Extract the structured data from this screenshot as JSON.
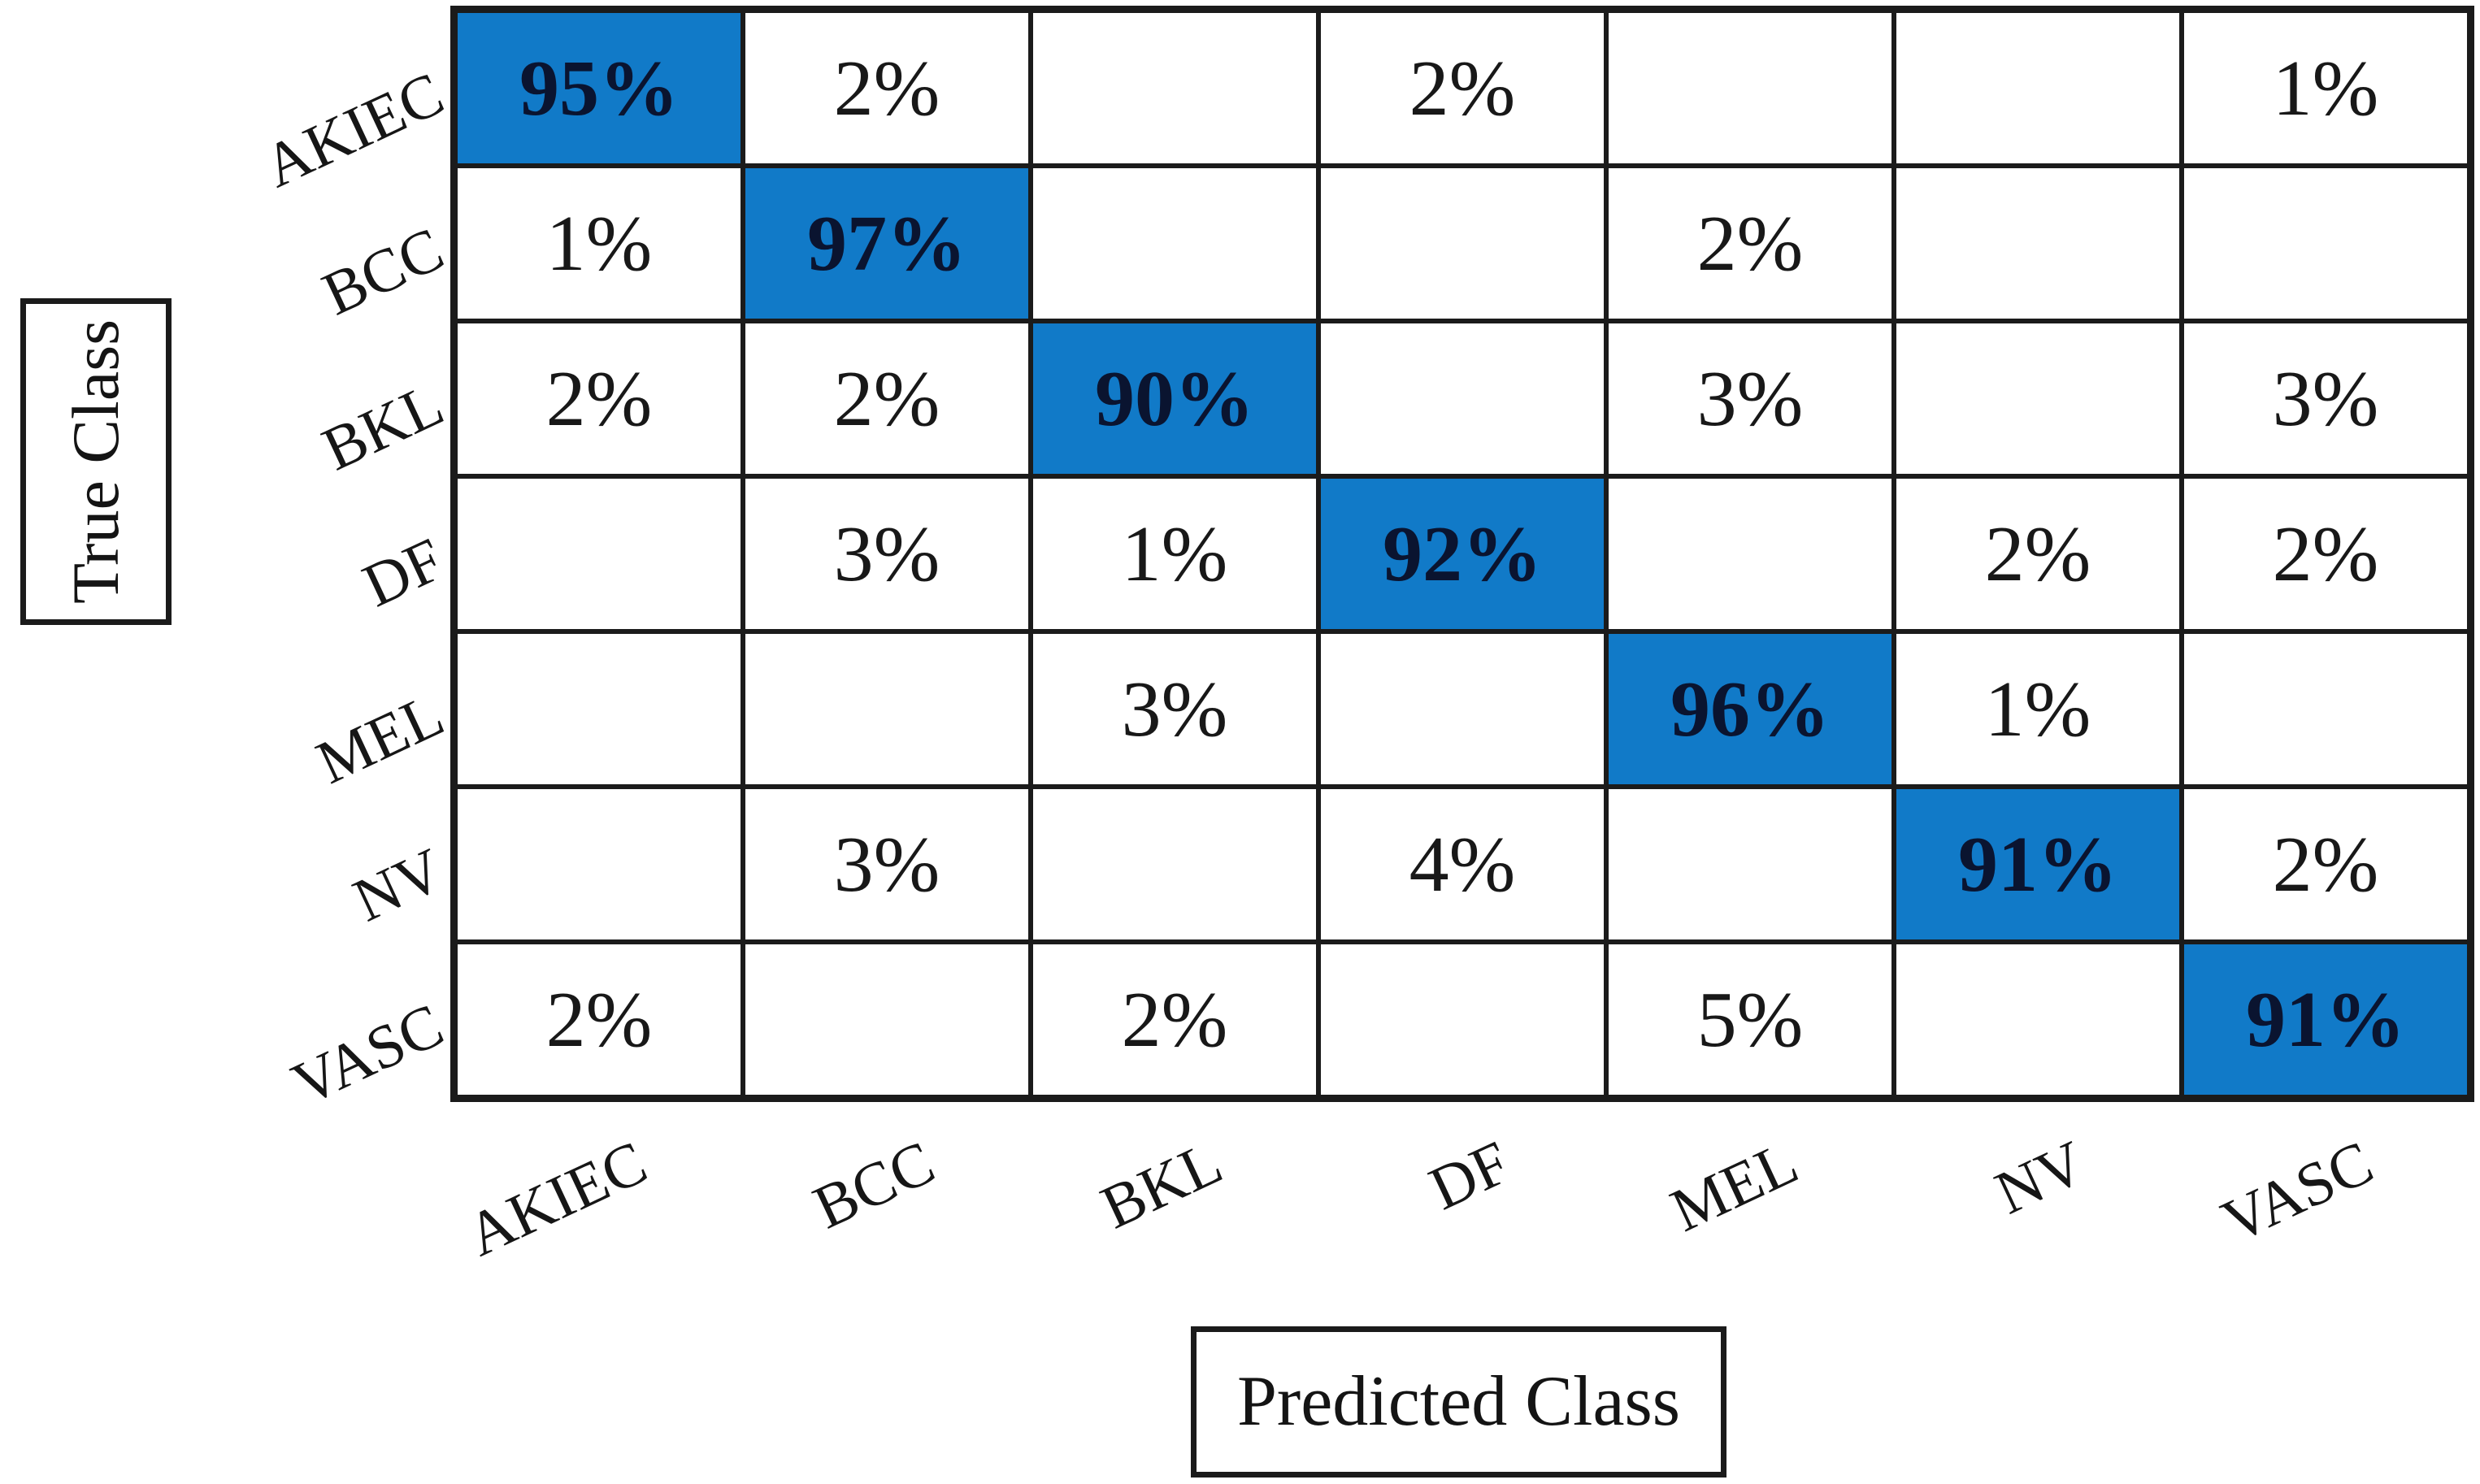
{
  "figure": {
    "y_axis_title": "True Class",
    "x_axis_title": "Predicted Class"
  },
  "colors": {
    "diagonal_cell_blue": "#117ac8",
    "diagonal_text": "#0a1430",
    "grid_line": "#1b1b1b",
    "cell_text": "#181818",
    "background": "#ffffff"
  },
  "chart_data": {
    "type": "heatmap",
    "subtype": "confusion-matrix",
    "title": "",
    "x_label": "Predicted Class",
    "y_label": "True Class",
    "grid": "on",
    "legend": "none",
    "classes": [
      "AKIEC",
      "BCC",
      "BKL",
      "DF",
      "MEL",
      "NV",
      "VASC"
    ],
    "unit": "%",
    "rows": [
      {
        "true_class": "AKIEC",
        "values": [
          "95%",
          "2%",
          "",
          "2%",
          "",
          "",
          "1%"
        ]
      },
      {
        "true_class": "BCC",
        "values": [
          "1%",
          "97%",
          "",
          "",
          "2%",
          "",
          ""
        ]
      },
      {
        "true_class": "BKL",
        "values": [
          "2%",
          "2%",
          "90%",
          "",
          "3%",
          "",
          "3%"
        ]
      },
      {
        "true_class": "DF",
        "values": [
          "",
          "3%",
          "1%",
          "92%",
          "",
          "2%",
          "2%"
        ]
      },
      {
        "true_class": "MEL",
        "values": [
          "",
          "",
          "3%",
          "",
          "96%",
          "1%",
          ""
        ]
      },
      {
        "true_class": "NV",
        "values": [
          "",
          "3%",
          "",
          "4%",
          "",
          "91%",
          "2%"
        ]
      },
      {
        "true_class": "VASC",
        "values": [
          "2%",
          "",
          "2%",
          "",
          "5%",
          "",
          "91%"
        ]
      }
    ],
    "diagonal_values": [
      "95%",
      "97%",
      "90%",
      "92%",
      "96%",
      "91%",
      "91%"
    ],
    "diagonal_highlighted": true
  }
}
